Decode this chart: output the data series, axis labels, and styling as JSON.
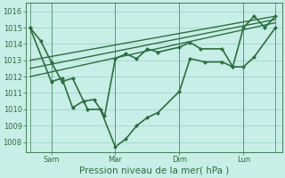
{
  "bg_color": "#c8eee8",
  "grid_color": "#a0d8c8",
  "line_color": "#2d6e3e",
  "ylabel": "Pression niveau de la mer( hPa )",
  "ylim": [
    1007.4,
    1016.5
  ],
  "yticks": [
    1008,
    1009,
    1010,
    1011,
    1012,
    1013,
    1014,
    1015,
    1016
  ],
  "tick_label_fontsize": 6.0,
  "xlabel_fontsize": 7.5,
  "x_tick_positions": [
    1,
    4,
    7,
    10
  ],
  "x_tick_labels": [
    "Sam",
    "Mar",
    "Dim",
    "Lun"
  ],
  "x_vlines": [
    0,
    1,
    4,
    7,
    10,
    11.5
  ],
  "xlim": [
    -0.2,
    11.8
  ],
  "series": [
    {
      "x": [
        0.0,
        0.5,
        1.0,
        1.5,
        2.0,
        2.7,
        3.3,
        4.0,
        4.5,
        5.0,
        5.5,
        6.0,
        7.0,
        7.5,
        8.2,
        9.0,
        9.5,
        10.0,
        10.5,
        11.5
      ],
      "y": [
        1015.0,
        1014.2,
        1012.9,
        1011.7,
        1011.9,
        1010.0,
        1010.0,
        1007.7,
        1008.2,
        1009.0,
        1009.5,
        1009.8,
        1011.1,
        1013.1,
        1012.9,
        1012.9,
        1012.6,
        1012.6,
        1013.2,
        1015.0
      ],
      "lw": 1.2,
      "marker": "D",
      "ms": 2.0
    },
    {
      "x": [
        0.0,
        11.5
      ],
      "y": [
        1013.0,
        1015.7
      ],
      "lw": 1.0,
      "marker": null,
      "ms": 0
    },
    {
      "x": [
        0.0,
        11.5
      ],
      "y": [
        1012.5,
        1015.5
      ],
      "lw": 1.0,
      "marker": null,
      "ms": 0
    },
    {
      "x": [
        0.0,
        11.5
      ],
      "y": [
        1012.0,
        1015.3
      ],
      "lw": 1.0,
      "marker": null,
      "ms": 0
    },
    {
      "x": [
        0.0,
        1.0,
        1.5,
        2.0,
        2.5,
        3.0,
        3.5,
        4.0,
        4.5,
        5.0,
        5.5,
        6.0,
        7.0,
        7.5,
        8.0,
        9.0,
        9.5,
        10.0,
        10.5,
        11.0,
        11.5
      ],
      "y": [
        1015.0,
        1011.7,
        1011.9,
        1010.1,
        1010.5,
        1010.6,
        1009.6,
        1013.1,
        1013.4,
        1013.1,
        1013.7,
        1013.5,
        1013.8,
        1014.1,
        1013.7,
        1013.7,
        1012.6,
        1015.0,
        1015.7,
        1015.0,
        1015.7
      ],
      "lw": 1.2,
      "marker": "D",
      "ms": 2.0
    }
  ]
}
